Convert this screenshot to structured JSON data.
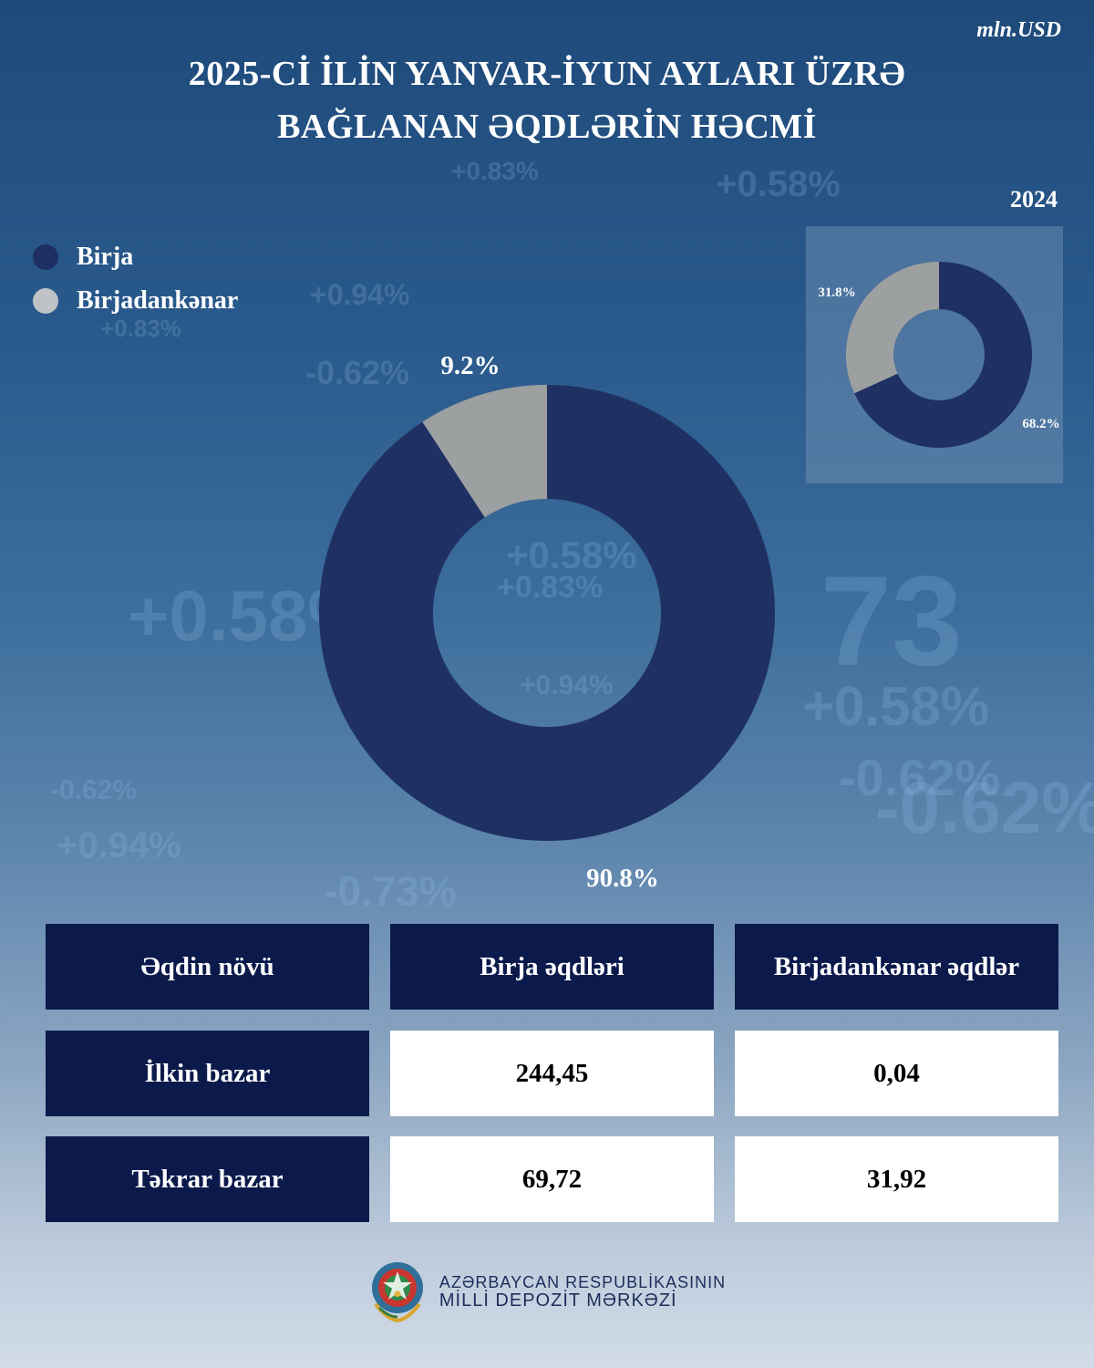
{
  "unit": "mln.USD",
  "title_lines": [
    "2025-Cİ İLİN YANVAR-İYUN AYLARI ÜZRƏ",
    "BAĞLANAN ƏQDLƏRİN HƏCMİ"
  ],
  "legend": [
    {
      "label": "Birja",
      "color": "#1e2f63"
    },
    {
      "label": "Birjadankənar",
      "color": "#9ca1a3"
    }
  ],
  "chart_data": [
    {
      "type": "pie",
      "title": "",
      "labels": [
        "Birja",
        "Birjadankənar"
      ],
      "values": [
        90.8,
        9.2
      ],
      "value_labels": [
        "90.8%",
        "9.2%"
      ],
      "colors": [
        "#1f3163",
        "#9ca0a0"
      ],
      "donut": true
    },
    {
      "type": "pie",
      "title": "2024",
      "labels": [
        "Birja",
        "Birjadankənar"
      ],
      "values": [
        68.2,
        31.8
      ],
      "value_labels": [
        "68.2%",
        "31.8%"
      ],
      "colors": [
        "#1f3163",
        "#9ca0a0"
      ],
      "donut": true
    }
  ],
  "table": {
    "headers": [
      "Əqdin növü",
      "Birja əqdləri",
      "Birjadankənar əqdlər"
    ],
    "rows": [
      [
        "İlkin bazar",
        "244,45",
        "0,04"
      ],
      [
        "Təkrar bazar",
        "69,72",
        "31,92"
      ]
    ]
  },
  "footer": {
    "line1": "AZƏRBAYCAN RESPUBLİKASININ",
    "line2": "MİLLİ DEPOZİT MƏRKƏZİ"
  },
  "background_numbers": [
    "+0.58%",
    "+0.83%",
    "+0.94%",
    "-0.62%",
    "-0.73%",
    "73"
  ]
}
